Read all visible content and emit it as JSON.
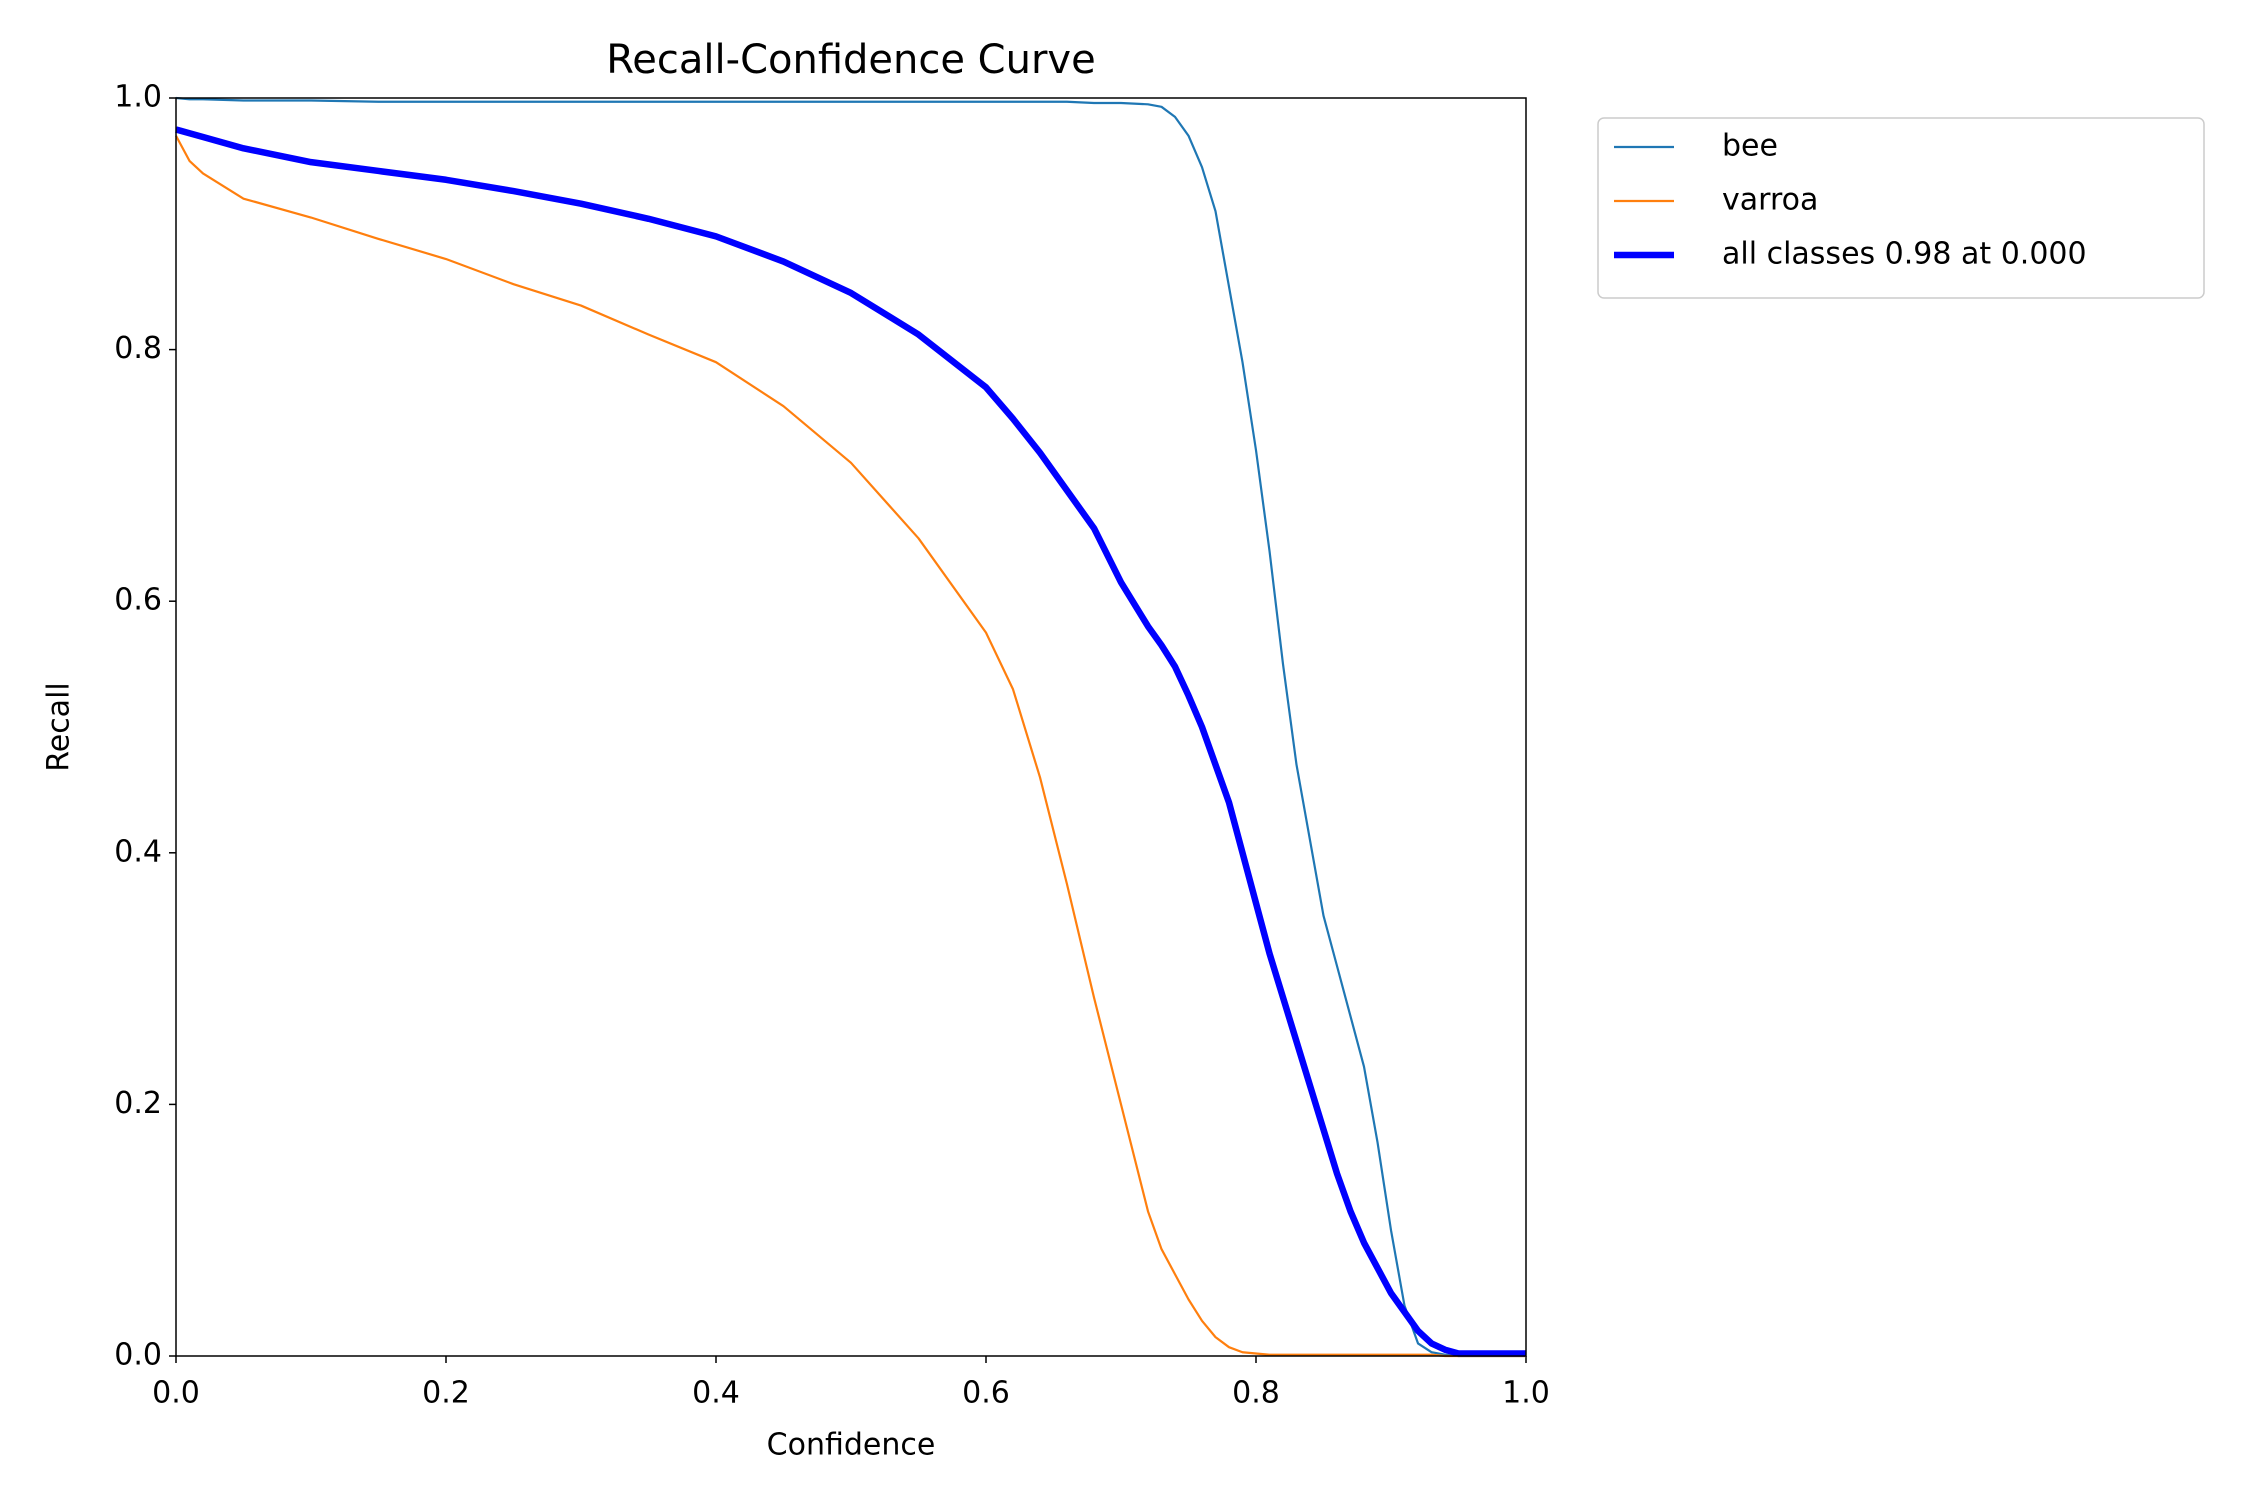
{
  "chart_data": {
    "type": "line",
    "title": "Recall-Confidence Curve",
    "x_label": "Confidence",
    "y_label": "Recall",
    "x": [
      0,
      0.01,
      0.02,
      0.05,
      0.1,
      0.15,
      0.2,
      0.25,
      0.3,
      0.35,
      0.4,
      0.45,
      0.5,
      0.55,
      0.6,
      0.62,
      0.64,
      0.66,
      0.68,
      0.7,
      0.72,
      0.73,
      0.74,
      0.75,
      0.76,
      0.77,
      0.78,
      0.79,
      0.8,
      0.81,
      0.82,
      0.83,
      0.84,
      0.85,
      0.86,
      0.87,
      0.88,
      0.89,
      0.9,
      0.91,
      0.92,
      0.93,
      0.94,
      0.95,
      0.96,
      0.98,
      1.0
    ],
    "series": [
      {
        "name": "bee",
        "color": "#1f77b4",
        "width": 2.2,
        "values": [
          1.0,
          0.999,
          0.999,
          0.998,
          0.998,
          0.997,
          0.997,
          0.997,
          0.997,
          0.997,
          0.997,
          0.997,
          0.997,
          0.997,
          0.997,
          0.997,
          0.997,
          0.997,
          0.996,
          0.996,
          0.995,
          0.993,
          0.985,
          0.97,
          0.945,
          0.91,
          0.85,
          0.79,
          0.72,
          0.64,
          0.55,
          0.47,
          0.41,
          0.35,
          0.31,
          0.27,
          0.23,
          0.17,
          0.1,
          0.04,
          0.01,
          0.003,
          0.001,
          0,
          0,
          0,
          0
        ]
      },
      {
        "name": "varroa",
        "color": "#ff7f0e",
        "width": 2.2,
        "values": [
          0.97,
          0.95,
          0.94,
          0.92,
          0.905,
          0.888,
          0.872,
          0.852,
          0.835,
          0.812,
          0.79,
          0.755,
          0.71,
          0.65,
          0.575,
          0.53,
          0.46,
          0.375,
          0.285,
          0.2,
          0.115,
          0.085,
          0.065,
          0.045,
          0.028,
          0.015,
          0.007,
          0.003,
          0.002,
          0.001,
          0.001,
          0.001,
          0.001,
          0.001,
          0.001,
          0.001,
          0.001,
          0.001,
          0.001,
          0.001,
          0.001,
          0.001,
          0,
          0,
          0,
          0,
          0
        ]
      },
      {
        "name": "all classes 0.98 at 0.000",
        "color": "#0000ff",
        "width": 6.5,
        "values": [
          0.975,
          0.972,
          0.969,
          0.96,
          0.949,
          0.942,
          0.935,
          0.926,
          0.916,
          0.904,
          0.89,
          0.87,
          0.845,
          0.812,
          0.77,
          0.745,
          0.718,
          0.688,
          0.658,
          0.615,
          0.58,
          0.565,
          0.548,
          0.525,
          0.5,
          0.47,
          0.44,
          0.4,
          0.36,
          0.32,
          0.285,
          0.25,
          0.215,
          0.18,
          0.145,
          0.115,
          0.09,
          0.07,
          0.05,
          0.035,
          0.02,
          0.01,
          0.005,
          0.002,
          0.002,
          0.002,
          0.002
        ]
      }
    ],
    "xlim": [
      0,
      1
    ],
    "ylim": [
      0,
      1
    ],
    "xticks": [
      {
        "value": 0,
        "label": "0.0"
      },
      0.2,
      0.4,
      0.6,
      0.8,
      {
        "value": 1,
        "label": "1.0"
      }
    ],
    "yticks": [
      {
        "value": 0,
        "label": "0.0"
      },
      0.2,
      0.4,
      0.6,
      0.8,
      {
        "value": 1,
        "label": "1.0"
      }
    ],
    "legend": "outside right",
    "grid": false
  }
}
